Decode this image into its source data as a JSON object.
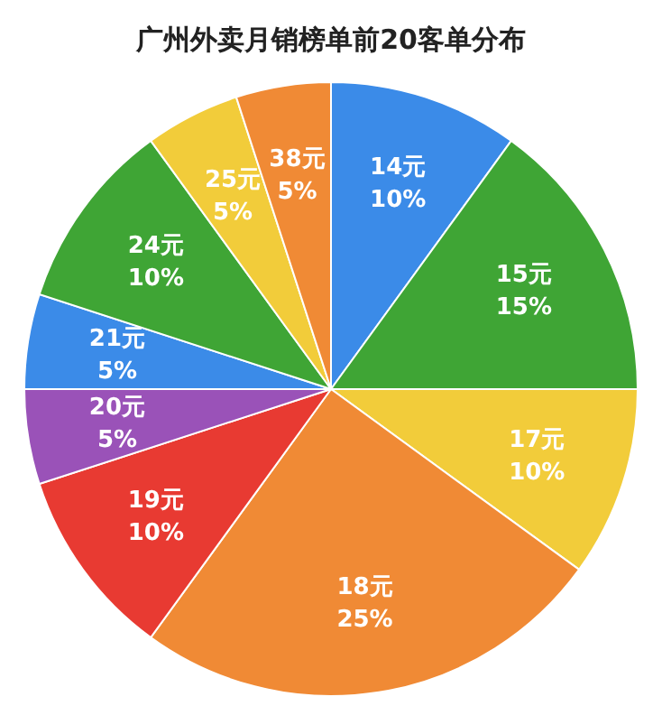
{
  "chart_data": {
    "type": "pie",
    "title": "广州外卖月销榜单前20客单分布",
    "categories": [
      "14元",
      "15元",
      "17元",
      "18元",
      "19元",
      "20元",
      "21元",
      "24元",
      "25元",
      "38元"
    ],
    "values": [
      10,
      15,
      10,
      25,
      10,
      5,
      5,
      10,
      5,
      5
    ],
    "value_labels": [
      "10%",
      "15%",
      "10%",
      "25%",
      "10%",
      "5%",
      "5%",
      "10%",
      "5%",
      "5%"
    ],
    "colors": [
      "#3b8be8",
      "#3fa535",
      "#f2cc3a",
      "#f08a35",
      "#e83a32",
      "#9a52b8",
      "#3b8be8",
      "#3fa535",
      "#f2cc3a",
      "#f08a35"
    ],
    "legend": false
  }
}
